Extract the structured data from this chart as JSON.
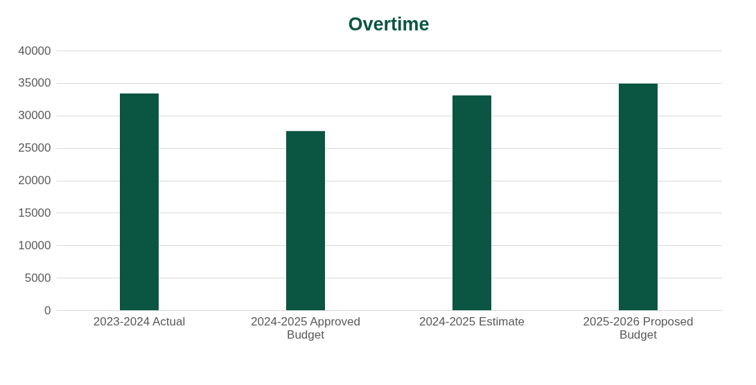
{
  "chart_data": {
    "type": "bar",
    "title": "Overtime",
    "categories": [
      "2023-2024 Actual",
      "2024-2025 Approved Budget",
      "2024-2025 Estimate",
      "2025-2026 Proposed Budget"
    ],
    "series": [
      {
        "color": "#0b5543",
        "values": [
          33400,
          27600,
          33100,
          34900
        ]
      }
    ],
    "ylim": [
      0,
      40000
    ],
    "yticks": [
      0,
      5000,
      10000,
      15000,
      20000,
      25000,
      30000,
      35000,
      40000
    ],
    "grid": "y"
  }
}
